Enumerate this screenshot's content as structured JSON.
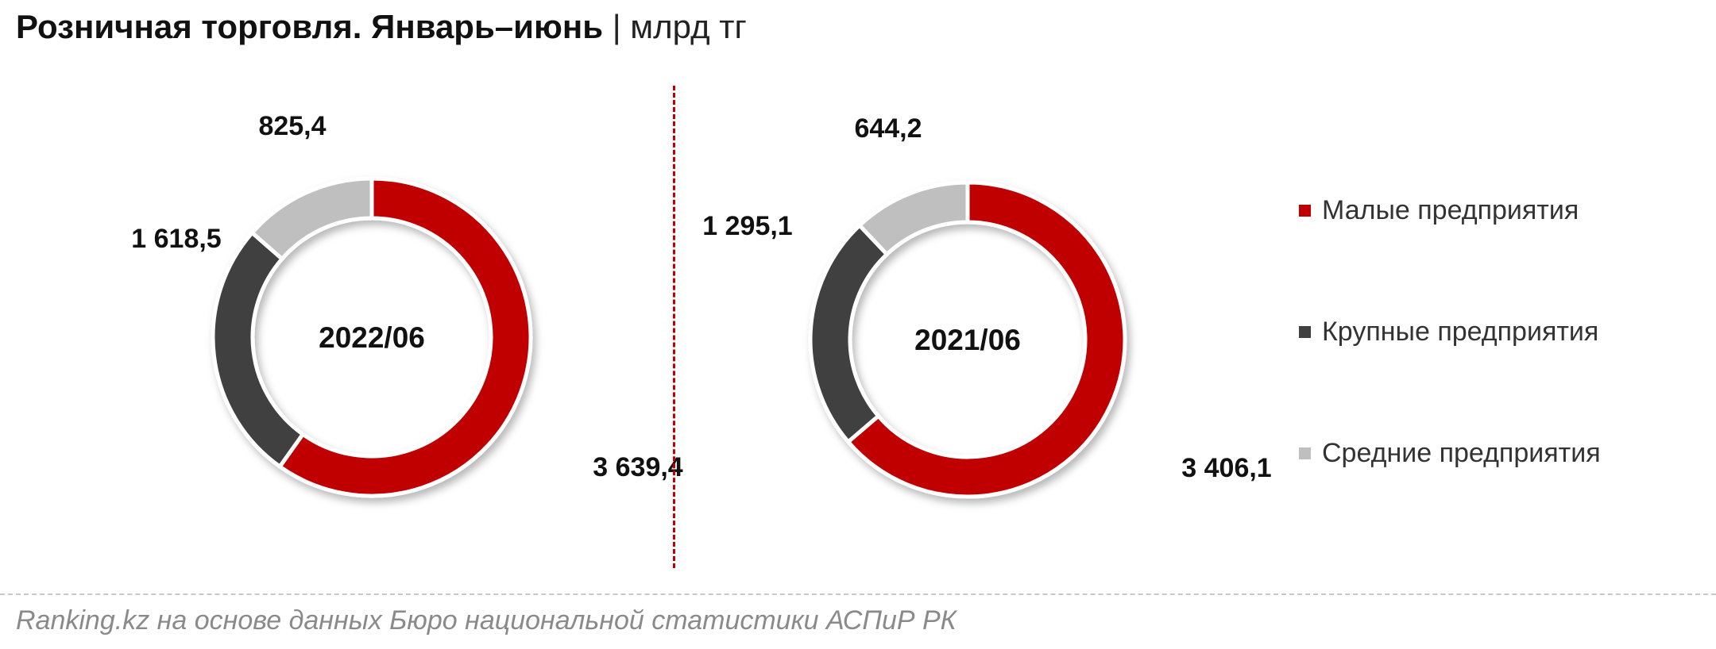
{
  "title": {
    "main": "Розничная торговля. Январь–июнь",
    "separator": "|",
    "unit": "млрд тг"
  },
  "legend": [
    {
      "label": "Малые предприятия",
      "color": "#c00000"
    },
    {
      "label": "Крупные предприятия",
      "color": "#404040"
    },
    {
      "label": "Средние предприятия",
      "color": "#bfbfbf"
    }
  ],
  "chart_data": [
    {
      "type": "pie",
      "center_label": "2022/06",
      "categories": [
        "Малые предприятия",
        "Крупные предприятия",
        "Средние предприятия"
      ],
      "values": [
        3639.4,
        1618.5,
        825.4
      ],
      "labels": [
        "3 639,4",
        "1 618,5",
        "825,4"
      ],
      "colors": [
        "#c00000",
        "#404040",
        "#bfbfbf"
      ]
    },
    {
      "type": "pie",
      "center_label": "2021/06",
      "categories": [
        "Малые предприятия",
        "Крупные предприятия",
        "Средние предприятия"
      ],
      "values": [
        3406.1,
        1295.1,
        644.2
      ],
      "labels": [
        "3 406,1",
        "1 295,1",
        "644,2"
      ],
      "colors": [
        "#c00000",
        "#404040",
        "#bfbfbf"
      ]
    }
  ],
  "source": "Ranking.kz на основе данных Бюро национальной статистики АСПиР РК"
}
